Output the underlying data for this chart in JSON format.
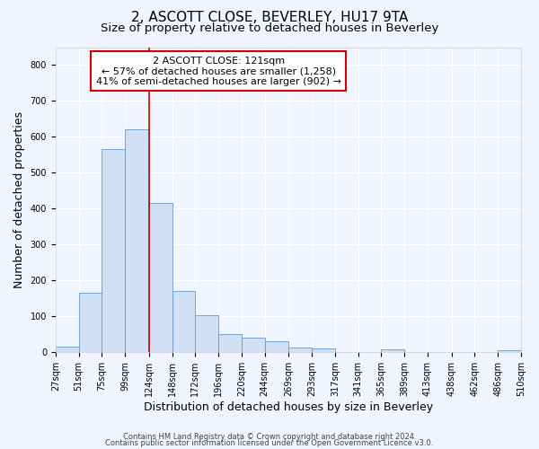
{
  "title": "2, ASCOTT CLOSE, BEVERLEY, HU17 9TA",
  "subtitle": "Size of property relative to detached houses in Beverley",
  "xlabel": "Distribution of detached houses by size in Beverley",
  "ylabel": "Number of detached properties",
  "bin_edges": [
    27,
    51,
    75,
    99,
    124,
    148,
    172,
    196,
    220,
    244,
    269,
    293,
    317,
    341,
    365,
    389,
    413,
    438,
    462,
    486,
    510
  ],
  "bar_heights": [
    17,
    165,
    565,
    620,
    415,
    172,
    103,
    52,
    40,
    32,
    13,
    12,
    0,
    0,
    9,
    0,
    0,
    0,
    0,
    7
  ],
  "bar_color": "#cfe0f5",
  "bar_edge_color": "#6699cc",
  "background_color": "#f0f4ff",
  "plot_bg_color": "#f0f4ff",
  "grid_color": "#ffffff",
  "vline_x": 124,
  "vline_color": "#cc0000",
  "annotation_text": "2 ASCOTT CLOSE: 121sqm\n← 57% of detached houses are smaller (1,258)\n41% of semi-detached houses are larger (902) →",
  "annotation_box_color": "#ffffff",
  "annotation_box_edge_color": "#cc0000",
  "ylim": [
    0,
    850
  ],
  "yticks": [
    0,
    100,
    200,
    300,
    400,
    500,
    600,
    700,
    800
  ],
  "xtick_labels": [
    "27sqm",
    "51sqm",
    "75sqm",
    "99sqm",
    "124sqm",
    "148sqm",
    "172sqm",
    "196sqm",
    "220sqm",
    "244sqm",
    "269sqm",
    "293sqm",
    "317sqm",
    "341sqm",
    "365sqm",
    "389sqm",
    "413sqm",
    "438sqm",
    "462sqm",
    "486sqm",
    "510sqm"
  ],
  "footer_line1": "Contains HM Land Registry data © Crown copyright and database right 2024.",
  "footer_line2": "Contains public sector information licensed under the Open Government Licence v3.0.",
  "title_fontsize": 11,
  "subtitle_fontsize": 9.5,
  "axis_label_fontsize": 9,
  "tick_fontsize": 7,
  "annotation_fontsize": 8,
  "footer_fontsize": 6
}
